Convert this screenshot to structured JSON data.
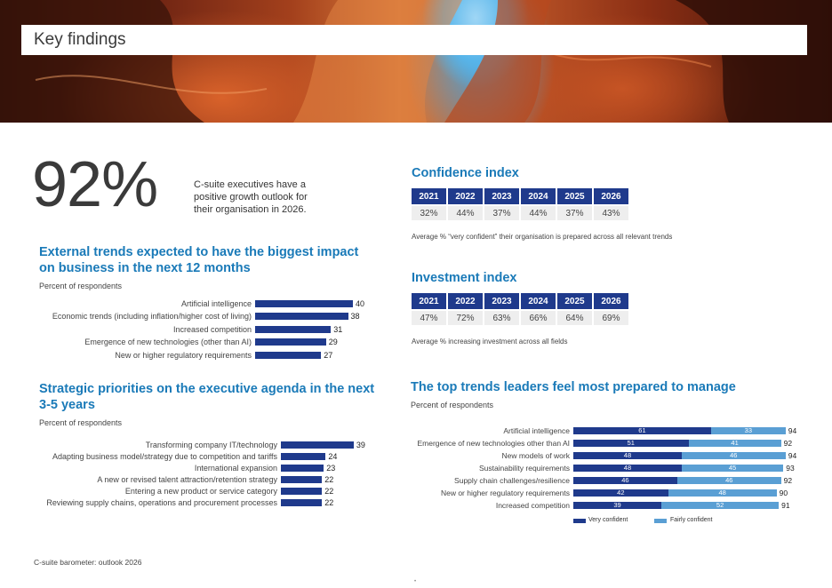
{
  "header": {
    "title": "Key findings"
  },
  "headline": {
    "value": "92%",
    "description": "C-suite executives have a positive growth outlook for their organisation in 2026."
  },
  "external_trends": {
    "title": "External trends expected to have the biggest impact on business in  the  next  12 months",
    "subtitle": "Percent of respondents"
  },
  "strategic_priorities": {
    "title": "Strategic priorities on the executive agenda in the next 3-5 years",
    "subtitle": "Percent of respondents"
  },
  "confidence_index": {
    "title": "Confidence index",
    "years": [
      "2021",
      "2022",
      "2023",
      "2024",
      "2025",
      "2026"
    ],
    "values": [
      "32%",
      "44%",
      "37%",
      "44%",
      "37%",
      "43%"
    ],
    "note": "Average % “very confident” their organisation is prepared across all relevant trends"
  },
  "investment_index": {
    "title": "Investment index",
    "years": [
      "2021",
      "2022",
      "2023",
      "2024",
      "2025",
      "2026"
    ],
    "values": [
      "47%",
      "72%",
      "63%",
      "66%",
      "64%",
      "69%"
    ],
    "note": "Average % increasing investment across all fields"
  },
  "top_trends": {
    "title": "The top trends leaders feel most prepared to manage",
    "subtitle": "Percent of respondents"
  },
  "colors": {
    "dark_bar": "#1f3a8c",
    "light_bar": "#5a9fd4",
    "title_blue": "#1a7ab8"
  },
  "chart_data": [
    {
      "type": "bar",
      "orientation": "horizontal",
      "categories": [
        "Artificial intelligence",
        "Economic trends (including inflation/higher cost of living)",
        "Increased competition",
        "Emergence of new technologies (other than AI)",
        "New or higher regulatory requirements"
      ],
      "values": [
        40,
        38,
        31,
        29,
        27
      ]
    },
    {
      "type": "bar",
      "orientation": "horizontal",
      "categories": [
        "Transforming company IT/technology",
        "Adapting business model/strategy due to competition and tariffs",
        "International expansion",
        "A new or revised talent attraction/retention strategy",
        "Entering a new product or service category",
        "Reviewing supply chains, operations and procurement processes"
      ],
      "values": [
        39,
        24,
        23,
        22,
        22,
        22
      ]
    },
    {
      "type": "bar",
      "orientation": "horizontal",
      "stacked": true,
      "categories": [
        "Artificial intelligence",
        "Emergence of new technologies other than AI",
        "New models of work",
        "Sustainability requirements",
        "Supply chain challenges/resilience",
        "New or higher regulatory requirements",
        "Increased competition"
      ],
      "series": [
        {
          "name": "Very confident",
          "values": [
            61,
            51,
            48,
            48,
            46,
            42,
            39
          ]
        },
        {
          "name": "Fairly confident",
          "values": [
            33,
            41,
            46,
            45,
            46,
            48,
            52
          ]
        }
      ],
      "totals": [
        94,
        92,
        94,
        93,
        92,
        90,
        91
      ],
      "legend": "bottom"
    }
  ],
  "footer": {
    "text": "C-suite barometer: outlook 2026",
    "page": "•"
  }
}
